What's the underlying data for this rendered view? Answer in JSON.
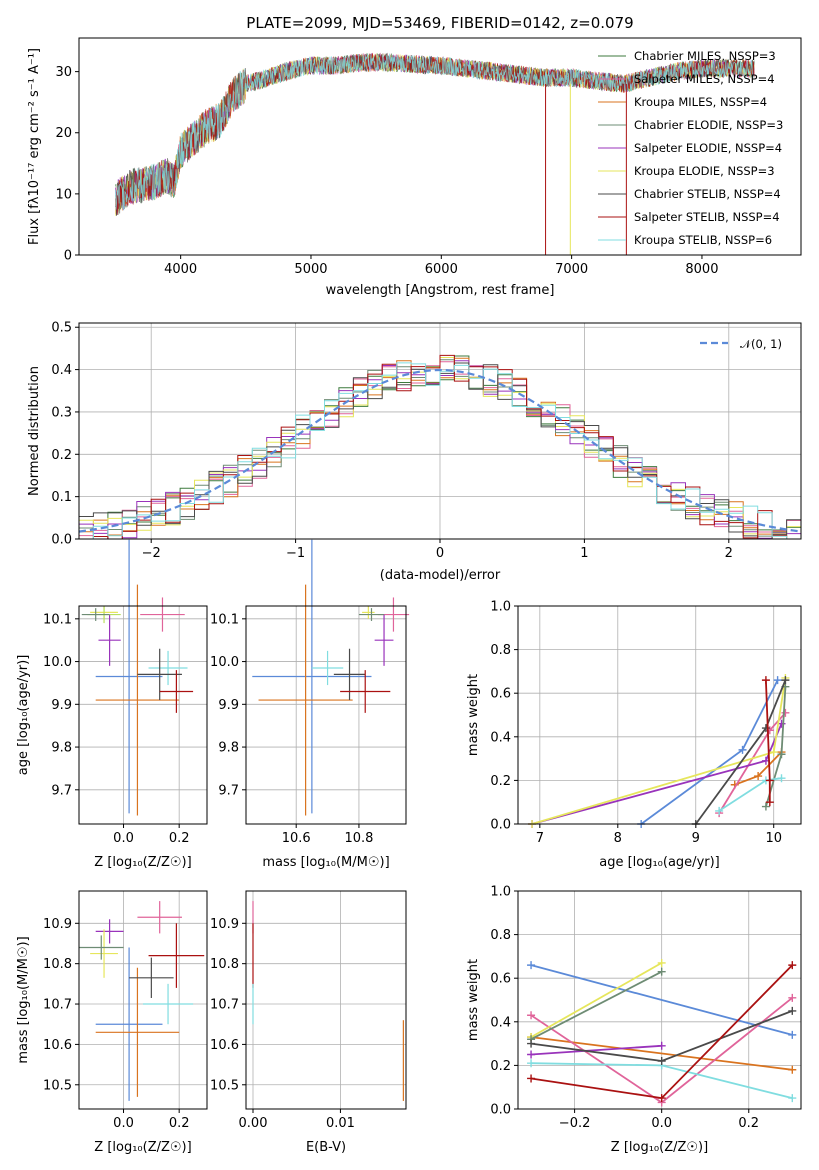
{
  "figure": {
    "title": "PLATE=2099, MJD=53469, FIBERID=0142, z=0.079"
  },
  "colors": {
    "Chabrier MILES": "#3d7a3d",
    "Salpeter MILES": "#e0649a",
    "Kroupa MILES": "#d9731f",
    "Chabrier ELODIE": "#6e8c74",
    "Salpeter ELODIE": "#9933bb",
    "Kroupa ELODIE": "#e6e65c",
    "Chabrier STELIB": "#4a4a4a",
    "Salpeter STELIB": "#aa1111",
    "Kroupa STELIB": "#80dde0",
    "Blue": "#5b8ad8",
    "LightGreen": "#b8e060"
  },
  "chart_data": [
    {
      "id": "spectrum",
      "type": "line",
      "title": "PLATE=2099, MJD=53469, FIBERID=0142, z=0.079",
      "xlabel": "wavelength [Angstrom, rest frame]",
      "ylabel": "Flux [fλ10⁻¹⁷ erg cm⁻² s⁻¹ A⁻¹]",
      "xlim": [
        3220,
        8760
      ],
      "ylim": [
        0,
        35.5
      ],
      "xticks": [
        "4000",
        "5000",
        "6000",
        "7000",
        "8000"
      ],
      "yticks": [
        "0",
        "10",
        "20",
        "30"
      ],
      "legend_position": "upper-right",
      "legend": [
        "Chabrier MILES, N_SSP=3",
        "Salpeter MILES, N_SSP=4",
        "Kroupa MILES, N_SSP=4",
        "Chabrier ELODIE, N_SSP=3",
        "Salpeter ELODIE, N_SSP=4",
        "Kroupa ELODIE, N_SSP=3",
        "Chabrier STELIB, N_SSP=4",
        "Salpeter STELIB, N_SSP=4",
        "Kroupa STELIB, N_SSP=6"
      ],
      "continuum": {
        "x": [
          3500,
          3600,
          3700,
          3800,
          3900,
          3950,
          4000,
          4100,
          4200,
          4300,
          4400,
          4500,
          4600,
          4800,
          5000,
          5200,
          5400,
          5600,
          5800,
          6000,
          6200,
          6400,
          6600,
          6800,
          7000,
          7200,
          7400,
          7600,
          7800,
          8000,
          8200,
          8400
        ],
        "y": [
          9,
          11,
          11.5,
          12,
          13,
          12,
          17,
          19,
          21,
          22,
          26,
          28,
          28.5,
          30,
          31,
          31,
          31.5,
          31.5,
          31.2,
          31,
          30.5,
          30,
          29.5,
          29,
          29,
          28.5,
          28,
          29,
          30,
          30.5,
          30.5,
          30.5
        ]
      },
      "drops": [
        {
          "series": "Salpeter STELIB",
          "x": 6800,
          "y": 0
        },
        {
          "series": "Kroupa ELODIE",
          "x": 6990,
          "y": 0
        },
        {
          "series": "Salpeter STELIB",
          "x": 7420,
          "y": 0
        }
      ]
    },
    {
      "id": "residuals",
      "type": "step",
      "xlabel": "(data-model)/error",
      "ylabel": "Normed distribution",
      "xlim": [
        -2.5,
        2.5
      ],
      "ylim": [
        0,
        0.51
      ],
      "xticks": [
        "−2",
        "−1",
        "0",
        "1",
        "2"
      ],
      "yticks": [
        "0.0",
        "0.1",
        "0.2",
        "0.3",
        "0.4",
        "0.5"
      ],
      "grid": true,
      "legend": [
        "𝒩(0, 1)"
      ],
      "legend_position": "upper-right",
      "normal_curve": {
        "mean": 0,
        "std": 1
      }
    },
    {
      "id": "age-vs-Z",
      "type": "errorbar",
      "xlabel": "Z [log₁₀(Z/Z☉)]",
      "ylabel": "age  [log₁₀(age/yr)]",
      "xlim": [
        -0.16,
        0.3
      ],
      "ylim": [
        9.62,
        10.13
      ],
      "xticks": [
        {
          "v": 0,
          "t": "0.0"
        },
        {
          "v": 0.2,
          "t": "0.2"
        }
      ],
      "yticks": [
        {
          "v": 9.7,
          "t": "9.7"
        },
        {
          "v": 9.8,
          "t": "9.8"
        },
        {
          "v": 9.9,
          "t": "9.9"
        },
        {
          "v": 10.0,
          "t": "10.0"
        },
        {
          "v": 10.1,
          "t": "10.1"
        }
      ],
      "grid": true,
      "points": [
        {
          "series": "Blue",
          "x": 0.02,
          "xerr": 0.12,
          "y": 9.965,
          "yerr": 0.32
        },
        {
          "series": "Kroupa MILES",
          "x": 0.05,
          "xerr": 0.15,
          "y": 9.91,
          "yerr": 0.27
        },
        {
          "series": "Salpeter MILES",
          "x": 0.14,
          "xerr": 0.08,
          "y": 10.11,
          "yerr": 0.04
        },
        {
          "series": "Salpeter ELODIE",
          "x": -0.05,
          "xerr": 0.04,
          "y": 10.05,
          "yerr": 0.06
        },
        {
          "series": "Kroupa ELODIE",
          "x": -0.07,
          "xerr": 0.05,
          "y": 10.115,
          "yerr": 0.015
        },
        {
          "series": "LightGreen",
          "x": -0.07,
          "xerr": 0.06,
          "y": 10.11,
          "yerr": 0.02
        },
        {
          "series": "Chabrier ELODIE",
          "x": -0.1,
          "xerr": 0.05,
          "y": 10.11,
          "yerr": 0.015
        },
        {
          "series": "Kroupa STELIB",
          "x": 0.16,
          "xerr": 0.07,
          "y": 9.985,
          "yerr": 0.04
        },
        {
          "series": "Chabrier STELIB",
          "x": 0.13,
          "xerr": 0.08,
          "y": 9.97,
          "yerr": 0.06
        },
        {
          "series": "Salpeter STELIB",
          "x": 0.19,
          "xerr": 0.06,
          "y": 9.93,
          "yerr": 0.05
        }
      ]
    },
    {
      "id": "age-vs-mass",
      "type": "errorbar",
      "xlabel": "mass [log₁₀(M/M☉)]",
      "xlim": [
        10.44,
        10.95
      ],
      "ylim": [
        9.62,
        10.13
      ],
      "xticks": [
        {
          "v": 10.6,
          "t": "10.6"
        },
        {
          "v": 10.8,
          "t": "10.8"
        }
      ],
      "yticks": [
        {
          "v": 9.7,
          "t": "9.7"
        },
        {
          "v": 9.8,
          "t": "9.8"
        },
        {
          "v": 9.9,
          "t": "9.9"
        },
        {
          "v": 10.0,
          "t": "10.0"
        },
        {
          "v": 10.1,
          "t": "10.1"
        }
      ],
      "grid": true,
      "points": [
        {
          "series": "Blue",
          "x": 10.65,
          "xerr": 0.19,
          "y": 9.965,
          "yerr": 0.32
        },
        {
          "series": "Kroupa MILES",
          "x": 10.63,
          "xerr": 0.15,
          "y": 9.91,
          "yerr": 0.27
        },
        {
          "series": "Salpeter MILES",
          "x": 10.91,
          "xerr": 0.05,
          "y": 10.11,
          "yerr": 0.04
        },
        {
          "series": "Salpeter ELODIE",
          "x": 10.88,
          "xerr": 0.03,
          "y": 10.05,
          "yerr": 0.06
        },
        {
          "series": "Kroupa ELODIE",
          "x": 10.83,
          "xerr": 0.02,
          "y": 10.115,
          "yerr": 0.015
        },
        {
          "series": "Chabrier ELODIE",
          "x": 10.84,
          "xerr": 0.04,
          "y": 10.11,
          "yerr": 0.015
        },
        {
          "series": "Kroupa STELIB",
          "x": 10.7,
          "xerr": 0.05,
          "y": 9.985,
          "yerr": 0.04
        },
        {
          "series": "Chabrier STELIB",
          "x": 10.77,
          "xerr": 0.05,
          "y": 9.97,
          "yerr": 0.06
        },
        {
          "series": "Salpeter STELIB",
          "x": 10.82,
          "xerr": 0.08,
          "y": 9.93,
          "yerr": 0.05
        }
      ]
    },
    {
      "id": "weight-vs-age",
      "type": "line",
      "xlabel": "age  [log₁₀(age/yr)]",
      "ylabel": "mass weight",
      "xlim": [
        6.72,
        10.35
      ],
      "ylim": [
        0,
        1
      ],
      "xticks": [
        {
          "v": 7,
          "t": "7"
        },
        {
          "v": 8,
          "t": "8"
        },
        {
          "v": 9,
          "t": "9"
        },
        {
          "v": 10,
          "t": "10"
        }
      ],
      "yticks": [
        {
          "v": 0,
          "t": "0.0"
        },
        {
          "v": 0.2,
          "t": "0.2"
        },
        {
          "v": 0.4,
          "t": "0.4"
        },
        {
          "v": 0.6,
          "t": "0.6"
        },
        {
          "v": 0.8,
          "t": "0.8"
        },
        {
          "v": 1.0,
          "t": "1.0"
        }
      ],
      "grid": true,
      "series": [
        {
          "name": "Blue",
          "x": [
            8.3,
            9.6,
            10.05
          ],
          "y": [
            0.0,
            0.34,
            0.66
          ]
        },
        {
          "name": "Kroupa MILES",
          "x": [
            9.5,
            9.8,
            10.1
          ],
          "y": [
            0.18,
            0.22,
            0.33
          ]
        },
        {
          "name": "Salpeter MILES",
          "x": [
            9.3,
            9.95,
            10.15
          ],
          "y": [
            0.05,
            0.43,
            0.51
          ]
        },
        {
          "name": "Salpeter ELODIE",
          "x": [
            6.9,
            9.9,
            10.1
          ],
          "y": [
            0.0,
            0.29,
            0.46
          ]
        },
        {
          "name": "Kroupa ELODIE",
          "x": [
            6.9,
            10.0,
            10.15
          ],
          "y": [
            0.0,
            0.33,
            0.67
          ]
        },
        {
          "name": "Chabrier ELODIE",
          "x": [
            9.9,
            10.1,
            10.15
          ],
          "y": [
            0.08,
            0.32,
            0.63
          ]
        },
        {
          "name": "Kroupa STELIB",
          "x": [
            9.3,
            9.9,
            10.1
          ],
          "y": [
            0.06,
            0.2,
            0.21
          ]
        },
        {
          "name": "Chabrier STELIB",
          "x": [
            9.0,
            9.9,
            10.15
          ],
          "y": [
            0.0,
            0.44,
            0.66
          ]
        },
        {
          "name": "Salpeter STELIB",
          "x": [
            9.9,
            9.95,
            9.95
          ],
          "y": [
            0.66,
            0.2,
            0.1
          ]
        }
      ]
    },
    {
      "id": "mass-vs-Z",
      "type": "errorbar",
      "xlabel": "Z [log₁₀(Z/Z☉)]",
      "ylabel": "mass [log₁₀(M/M☉)]",
      "xlim": [
        -0.16,
        0.3
      ],
      "ylim": [
        10.44,
        10.98
      ],
      "xticks": [
        {
          "v": 0,
          "t": "0.0"
        },
        {
          "v": 0.2,
          "t": "0.2"
        }
      ],
      "yticks": [
        {
          "v": 10.5,
          "t": "10.5"
        },
        {
          "v": 10.6,
          "t": "10.6"
        },
        {
          "v": 10.7,
          "t": "10.7"
        },
        {
          "v": 10.8,
          "t": "10.8"
        },
        {
          "v": 10.9,
          "t": "10.9"
        }
      ],
      "grid": true,
      "points": [
        {
          "series": "Blue",
          "x": 0.02,
          "xerr": 0.12,
          "y": 10.65,
          "yerr": 0.19
        },
        {
          "series": "Kroupa MILES",
          "x": 0.05,
          "xerr": 0.15,
          "y": 10.63,
          "yerr": 0.16
        },
        {
          "series": "Salpeter MILES",
          "x": 0.13,
          "xerr": 0.08,
          "y": 10.915,
          "yerr": 0.04
        },
        {
          "series": "Salpeter ELODIE",
          "x": -0.05,
          "xerr": 0.05,
          "y": 10.88,
          "yerr": 0.03
        },
        {
          "series": "Kroupa ELODIE",
          "x": -0.07,
          "xerr": 0.05,
          "y": 10.825,
          "yerr": 0.06
        },
        {
          "series": "Chabrier ELODIE",
          "x": -0.08,
          "xerr": 0.08,
          "y": 10.84,
          "yerr": 0.03
        },
        {
          "series": "Kroupa STELIB",
          "x": 0.16,
          "xerr": 0.09,
          "y": 10.7,
          "yerr": 0.05
        },
        {
          "series": "Chabrier STELIB",
          "x": 0.1,
          "xerr": 0.08,
          "y": 10.765,
          "yerr": 0.05
        },
        {
          "series": "Salpeter STELIB",
          "x": 0.19,
          "xerr": 0.1,
          "y": 10.82,
          "yerr": 0.08
        }
      ]
    },
    {
      "id": "mass-vs-EBV",
      "type": "errorbar",
      "xlabel": "E(B-V)",
      "xlim": [
        -0.0008,
        0.0175
      ],
      "ylim": [
        10.44,
        10.98
      ],
      "xticks": [
        {
          "v": 0,
          "t": "0.00"
        },
        {
          "v": 0.01,
          "t": "0.01"
        }
      ],
      "yticks": [
        {
          "v": 10.5,
          "t": "10.5"
        },
        {
          "v": 10.6,
          "t": "10.6"
        },
        {
          "v": 10.7,
          "t": "10.7"
        },
        {
          "v": 10.8,
          "t": "10.8"
        },
        {
          "v": 10.9,
          "t": "10.9"
        }
      ],
      "grid": true,
      "points": [
        {
          "series": "Salpeter MILES",
          "x": 0.0,
          "xerr": 0,
          "y": 10.915,
          "yerr": 0.04
        },
        {
          "series": "Salpeter STELIB",
          "x": 0.0,
          "xerr": 0,
          "y": 10.82,
          "yerr": 0.08
        },
        {
          "series": "Kroupa STELIB",
          "x": 0.0,
          "xerr": 0,
          "y": 10.7,
          "yerr": 0.05
        },
        {
          "series": "Kroupa MILES",
          "x": 0.0172,
          "xerr": 0,
          "y": 10.56,
          "yerr": 0.1
        }
      ]
    },
    {
      "id": "weight-vs-Z",
      "type": "line",
      "xlabel": "Z [log₁₀(Z/Z☉)]",
      "ylabel": "mass weight",
      "xlim": [
        -0.33,
        0.32
      ],
      "ylim": [
        0,
        1
      ],
      "xticks": [
        {
          "v": -0.2,
          "t": "−0.2"
        },
        {
          "v": 0,
          "t": "0.0"
        },
        {
          "v": 0.2,
          "t": "0.2"
        }
      ],
      "yticks": [
        {
          "v": 0,
          "t": "0.0"
        },
        {
          "v": 0.2,
          "t": "0.2"
        },
        {
          "v": 0.4,
          "t": "0.4"
        },
        {
          "v": 0.6,
          "t": "0.6"
        },
        {
          "v": 0.8,
          "t": "0.8"
        },
        {
          "v": 1.0,
          "t": "1.0"
        }
      ],
      "grid": true,
      "series": [
        {
          "name": "Blue",
          "x": [
            -0.3,
            0.3
          ],
          "y": [
            0.66,
            0.34
          ]
        },
        {
          "name": "Kroupa MILES",
          "x": [
            -0.3,
            0.3
          ],
          "y": [
            0.33,
            0.18
          ]
        },
        {
          "name": "Salpeter MILES",
          "x": [
            -0.3,
            0.0,
            0.3
          ],
          "y": [
            0.43,
            0.03,
            0.51
          ]
        },
        {
          "name": "Salpeter ELODIE",
          "x": [
            -0.3,
            0.0
          ],
          "y": [
            0.25,
            0.29
          ]
        },
        {
          "name": "Kroupa ELODIE",
          "x": [
            -0.3,
            0.0
          ],
          "y": [
            0.33,
            0.67
          ]
        },
        {
          "name": "Chabrier ELODIE",
          "x": [
            -0.3,
            0.0
          ],
          "y": [
            0.32,
            0.63
          ]
        },
        {
          "name": "Kroupa STELIB",
          "x": [
            -0.3,
            0.0,
            0.3
          ],
          "y": [
            0.21,
            0.2,
            0.05
          ]
        },
        {
          "name": "Chabrier STELIB",
          "x": [
            -0.3,
            0.0,
            0.3
          ],
          "y": [
            0.3,
            0.22,
            0.45
          ]
        },
        {
          "name": "Salpeter STELIB",
          "x": [
            -0.3,
            0.0,
            0.3
          ],
          "y": [
            0.14,
            0.05,
            0.66
          ]
        }
      ]
    }
  ]
}
